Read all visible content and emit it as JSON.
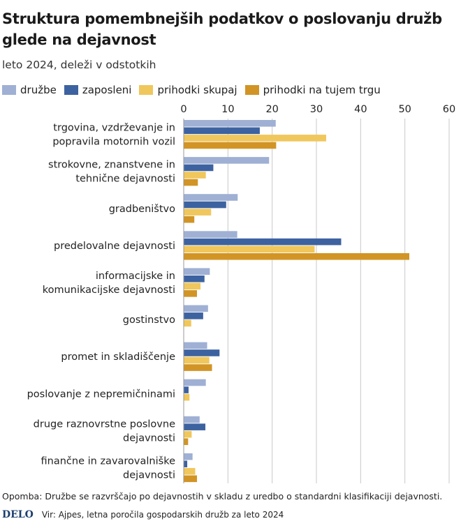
{
  "header": {
    "title": "Struktura pomembnejših podatkov o poslovanju družb glede na dejavnost",
    "subtitle": "leto 2024, deleži v odstotkih"
  },
  "footer": {
    "note": "Opomba: Družbe se razvrščajo po dejavnostih v skladu z uredbo o standardni klasifikaciji dejavnosti.",
    "brand": "DELO",
    "source": "Vir: Ajpes, letna poročila gospodarskih družb za leto 2024"
  },
  "chart_data": {
    "type": "bar",
    "orientation": "horizontal",
    "title": "Struktura pomembnejših podatkov o poslovanju družb glede na dejavnost",
    "subtitle": "leto 2024, deleži v odstotkih",
    "xlabel": "",
    "ylabel": "",
    "xlim": [
      0,
      60
    ],
    "ticks": [
      0,
      10,
      20,
      30,
      40,
      50,
      60
    ],
    "grid": true,
    "legend_position": "top",
    "categories": [
      [
        "trgovina, vzdrževanje in",
        "popravila motornih vozil"
      ],
      [
        "strokovne, znanstvene in",
        "tehnične dejavnosti"
      ],
      [
        "gradbeništvo"
      ],
      [
        "predelovalne dejavnosti"
      ],
      [
        "informacijske in",
        "komunikacijske dejavnosti"
      ],
      [
        "gostinstvo"
      ],
      [
        "promet in skladiščenje"
      ],
      [
        "poslovanje z nepremičninami"
      ],
      [
        "druge raznovrstne poslovne",
        "dejavnosti"
      ],
      [
        "finančne in zavarovalniške",
        "dejavnosti"
      ]
    ],
    "series": [
      {
        "name": "družbe",
        "color": "#9fb0d4",
        "values": [
          20.8,
          19.3,
          12.2,
          12.1,
          5.9,
          5.5,
          5.3,
          5.0,
          3.6,
          2.0
        ]
      },
      {
        "name": "zaposleni",
        "color": "#3d62a0",
        "values": [
          17.2,
          6.7,
          9.6,
          35.6,
          4.7,
          4.4,
          8.1,
          1.1,
          4.9,
          0.8
        ]
      },
      {
        "name": "prihodki skupaj",
        "color": "#f0c75c",
        "values": [
          32.2,
          5.0,
          6.2,
          29.6,
          3.8,
          1.7,
          5.8,
          1.3,
          1.8,
          2.6
        ]
      },
      {
        "name": "prihodki na tujem trgu",
        "color": "#d19425",
        "values": [
          20.9,
          3.2,
          2.4,
          51.0,
          3.0,
          0.0,
          6.4,
          0.0,
          1.0,
          3.0
        ]
      }
    ]
  }
}
